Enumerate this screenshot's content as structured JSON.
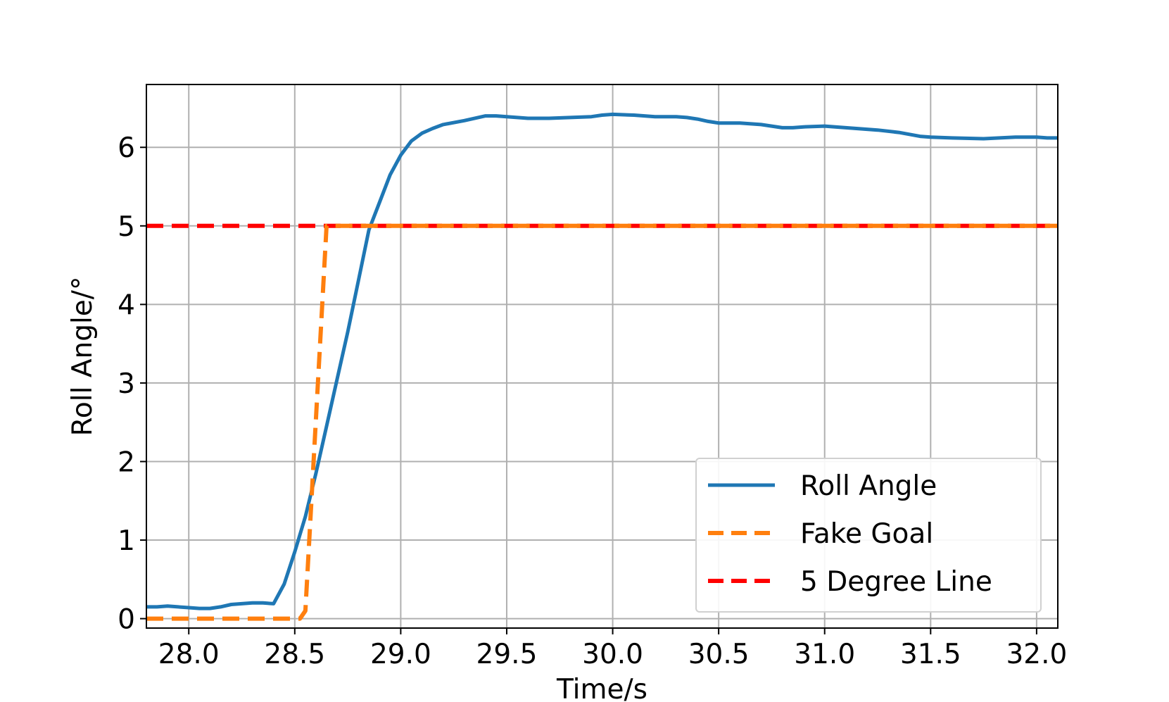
{
  "chart_data": {
    "type": "line",
    "title": "",
    "xlabel": "Time/s",
    "ylabel": "Roll Angle/°",
    "xlim": [
      27.8,
      32.1
    ],
    "ylim": [
      -0.12,
      6.8
    ],
    "xticks": [
      28.0,
      28.5,
      29.0,
      29.5,
      30.0,
      30.5,
      31.0,
      31.5,
      32.0
    ],
    "xtick_labels": [
      "28.0",
      "28.5",
      "29.0",
      "29.5",
      "30.0",
      "30.5",
      "31.0",
      "31.5",
      "32.0"
    ],
    "yticks": [
      0,
      1,
      2,
      3,
      4,
      5,
      6
    ],
    "ytick_labels": [
      "0",
      "1",
      "2",
      "3",
      "4",
      "5",
      "6"
    ],
    "grid": true,
    "legend_position": "lower-right",
    "series": [
      {
        "name": "Roll Angle",
        "style": "solid",
        "color": "#1f77b4",
        "points": [
          [
            27.8,
            0.15
          ],
          [
            27.85,
            0.15
          ],
          [
            27.9,
            0.16
          ],
          [
            27.95,
            0.15
          ],
          [
            28.0,
            0.14
          ],
          [
            28.05,
            0.13
          ],
          [
            28.1,
            0.13
          ],
          [
            28.15,
            0.15
          ],
          [
            28.2,
            0.18
          ],
          [
            28.25,
            0.19
          ],
          [
            28.3,
            0.2
          ],
          [
            28.35,
            0.2
          ],
          [
            28.4,
            0.19
          ],
          [
            28.45,
            0.44
          ],
          [
            28.5,
            0.85
          ],
          [
            28.55,
            1.3
          ],
          [
            28.6,
            1.85
          ],
          [
            28.65,
            2.45
          ],
          [
            28.7,
            3.05
          ],
          [
            28.75,
            3.65
          ],
          [
            28.8,
            4.3
          ],
          [
            28.85,
            4.95
          ],
          [
            28.9,
            5.3
          ],
          [
            28.95,
            5.65
          ],
          [
            29.0,
            5.9
          ],
          [
            29.05,
            6.08
          ],
          [
            29.1,
            6.18
          ],
          [
            29.15,
            6.24
          ],
          [
            29.2,
            6.29
          ],
          [
            29.3,
            6.34
          ],
          [
            29.4,
            6.4
          ],
          [
            29.45,
            6.4
          ],
          [
            29.5,
            6.39
          ],
          [
            29.6,
            6.37
          ],
          [
            29.7,
            6.37
          ],
          [
            29.8,
            6.38
          ],
          [
            29.9,
            6.39
          ],
          [
            29.95,
            6.41
          ],
          [
            30.0,
            6.42
          ],
          [
            30.1,
            6.41
          ],
          [
            30.2,
            6.39
          ],
          [
            30.3,
            6.39
          ],
          [
            30.35,
            6.38
          ],
          [
            30.4,
            6.36
          ],
          [
            30.45,
            6.33
          ],
          [
            30.5,
            6.31
          ],
          [
            30.6,
            6.31
          ],
          [
            30.7,
            6.29
          ],
          [
            30.8,
            6.25
          ],
          [
            30.85,
            6.25
          ],
          [
            30.9,
            6.26
          ],
          [
            31.0,
            6.27
          ],
          [
            31.1,
            6.25
          ],
          [
            31.15,
            6.24
          ],
          [
            31.25,
            6.22
          ],
          [
            31.35,
            6.19
          ],
          [
            31.45,
            6.14
          ],
          [
            31.5,
            6.13
          ],
          [
            31.6,
            6.12
          ],
          [
            31.75,
            6.11
          ],
          [
            31.9,
            6.13
          ],
          [
            32.0,
            6.13
          ],
          [
            32.05,
            6.12
          ],
          [
            32.1,
            6.12
          ]
        ]
      },
      {
        "name": "Fake Goal",
        "style": "dashed",
        "color": "#ff7f0e",
        "points": [
          [
            27.8,
            0
          ],
          [
            28.5,
            0
          ],
          [
            28.525,
            0
          ],
          [
            28.55,
            0.1
          ],
          [
            28.65,
            5.0
          ],
          [
            32.1,
            5.0
          ]
        ]
      },
      {
        "name": "5 Degree Line",
        "style": "dashed",
        "color": "#ff0000",
        "points": [
          [
            27.8,
            5.0
          ],
          [
            32.1,
            5.0
          ]
        ]
      }
    ]
  }
}
